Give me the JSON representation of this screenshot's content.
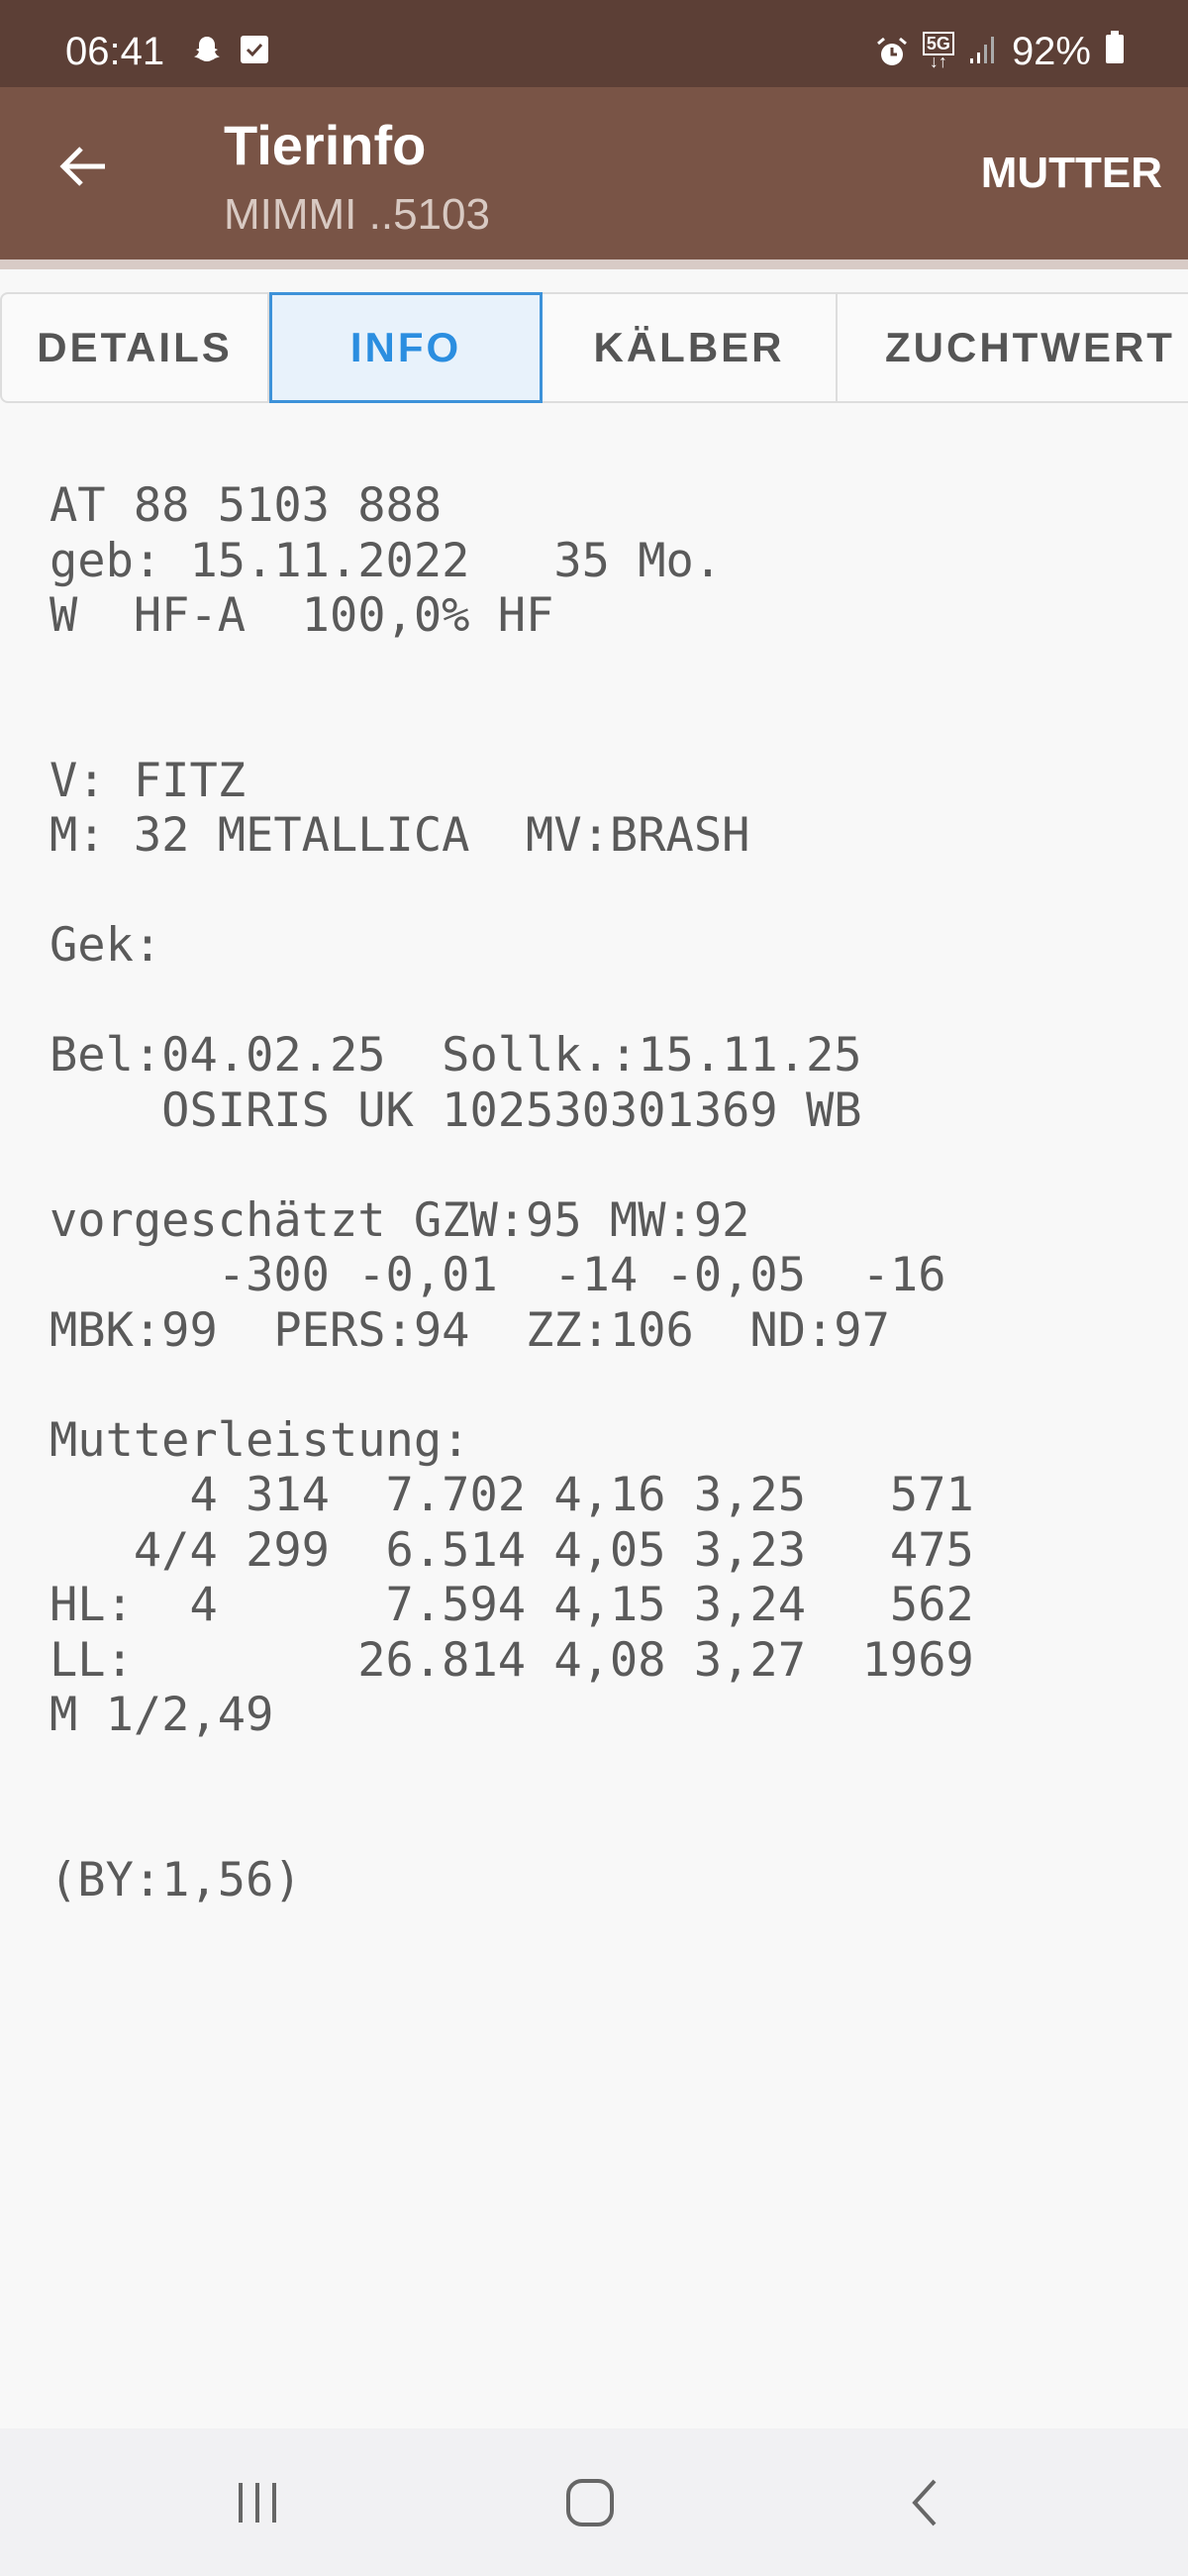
{
  "status_bar": {
    "time": "06:41",
    "left_icons": [
      "snapchat-icon",
      "checkbox-icon"
    ],
    "right_icons": [
      "alarm-icon",
      "5g-icon",
      "signal-icon"
    ],
    "network": "5G",
    "battery": "92%"
  },
  "app_bar": {
    "title": "Tierinfo",
    "subtitle": "MIMMI ..5103",
    "action": "MUTTER",
    "color": "#795446"
  },
  "tabs": [
    {
      "label": "DETAILS",
      "selected": false
    },
    {
      "label": "INFO",
      "selected": true
    },
    {
      "label": "KÄLBER",
      "selected": false
    },
    {
      "label": "ZUCHTWERT",
      "selected": false
    }
  ],
  "info_lines": [
    "AT 88 5103 888",
    "geb: 15.11.2022   35 Mo.",
    "W  HF-A  100,0% HF",
    "",
    "",
    "V: FITZ",
    "M: 32 METALLICA  MV:BRASH",
    "",
    "Gek:",
    "",
    "Bel:04.02.25  Sollk.:15.11.25",
    "    OSIRIS UK 102530301369 WB",
    "",
    "vorgeschätzt GZW:95 MW:92",
    "      -300 -0,01  -14 -0,05  -16",
    "MBK:99  PERS:94  ZZ:106  ND:97",
    "",
    "Mutterleistung:",
    "     4 314  7.702 4,16 3,25   571",
    "   4/4 299  6.514 4,05 3,23   475",
    "HL:  4      7.594 4,15 3,24   562",
    "LL:        26.814 4,08 3,27  1969",
    "M 1/2,49",
    "",
    "",
    "(BY:1,56)"
  ],
  "nav_bar": [
    "recent-apps-icon",
    "home-icon",
    "back-icon"
  ]
}
